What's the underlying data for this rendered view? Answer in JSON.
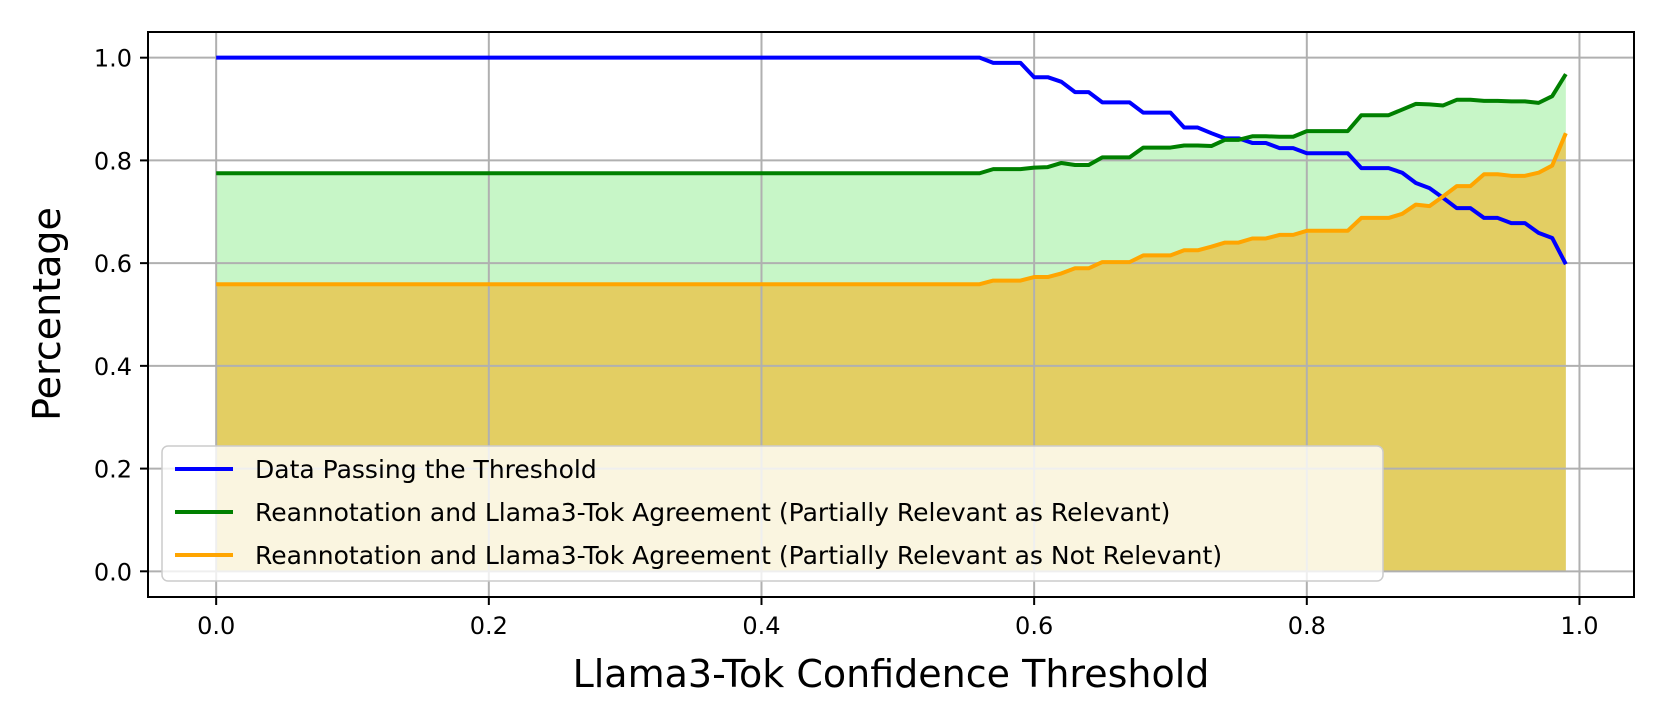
{
  "chart_data": {
    "type": "line",
    "title": "",
    "xlabel": "Llama3-Tok Confidence Threshold",
    "ylabel": "Percentage",
    "xlim": [
      -0.05,
      1.04
    ],
    "ylim": [
      -0.05,
      1.05
    ],
    "xticks": [
      0.0,
      0.2,
      0.4,
      0.6,
      0.8,
      1.0
    ],
    "xtick_labels": [
      "0.0",
      "0.2",
      "0.4",
      "0.6",
      "0.8",
      "1.0"
    ],
    "yticks": [
      0.0,
      0.2,
      0.4,
      0.6,
      0.8,
      1.0
    ],
    "ytick_labels": [
      "0.0",
      "0.2",
      "0.4",
      "0.6",
      "0.8",
      "1.0"
    ],
    "grid": true,
    "legend_position": "lower-left",
    "fill_under_lines": true,
    "series": [
      {
        "name": "Data Passing the Threshold",
        "color": "#0000ff",
        "fill_color": "",
        "points": [
          [
            0.0,
            1.0
          ],
          [
            0.56,
            1.0
          ],
          [
            0.57,
            0.99
          ],
          [
            0.59,
            0.99
          ],
          [
            0.6,
            0.962
          ],
          [
            0.61,
            0.962
          ],
          [
            0.62,
            0.953
          ],
          [
            0.63,
            0.933
          ],
          [
            0.64,
            0.933
          ],
          [
            0.65,
            0.913
          ],
          [
            0.67,
            0.913
          ],
          [
            0.68,
            0.893
          ],
          [
            0.7,
            0.893
          ],
          [
            0.71,
            0.864
          ],
          [
            0.72,
            0.864
          ],
          [
            0.73,
            0.853
          ],
          [
            0.74,
            0.843
          ],
          [
            0.75,
            0.843
          ],
          [
            0.76,
            0.834
          ],
          [
            0.77,
            0.834
          ],
          [
            0.78,
            0.824
          ],
          [
            0.79,
            0.824
          ],
          [
            0.8,
            0.814
          ],
          [
            0.83,
            0.814
          ],
          [
            0.84,
            0.785
          ],
          [
            0.86,
            0.785
          ],
          [
            0.87,
            0.776
          ],
          [
            0.88,
            0.756
          ],
          [
            0.89,
            0.746
          ],
          [
            0.9,
            0.727
          ],
          [
            0.91,
            0.707
          ],
          [
            0.92,
            0.707
          ],
          [
            0.93,
            0.688
          ],
          [
            0.94,
            0.688
          ],
          [
            0.95,
            0.678
          ],
          [
            0.96,
            0.678
          ],
          [
            0.97,
            0.659
          ],
          [
            0.98,
            0.649
          ],
          [
            0.99,
            0.598
          ]
        ]
      },
      {
        "name": "Reannotation and Llama3-Tok Agreement (Partially Relevant as Relevant)",
        "color": "#008000",
        "fill_color": "#90ee90",
        "points": [
          [
            0.0,
            0.775
          ],
          [
            0.56,
            0.775
          ],
          [
            0.57,
            0.783
          ],
          [
            0.59,
            0.783
          ],
          [
            0.6,
            0.786
          ],
          [
            0.61,
            0.787
          ],
          [
            0.62,
            0.795
          ],
          [
            0.63,
            0.791
          ],
          [
            0.64,
            0.791
          ],
          [
            0.65,
            0.806
          ],
          [
            0.67,
            0.806
          ],
          [
            0.68,
            0.825
          ],
          [
            0.7,
            0.825
          ],
          [
            0.71,
            0.829
          ],
          [
            0.72,
            0.829
          ],
          [
            0.73,
            0.828
          ],
          [
            0.74,
            0.84
          ],
          [
            0.75,
            0.84
          ],
          [
            0.76,
            0.847
          ],
          [
            0.77,
            0.847
          ],
          [
            0.78,
            0.846
          ],
          [
            0.79,
            0.846
          ],
          [
            0.8,
            0.857
          ],
          [
            0.83,
            0.857
          ],
          [
            0.84,
            0.888
          ],
          [
            0.86,
            0.888
          ],
          [
            0.87,
            0.899
          ],
          [
            0.88,
            0.91
          ],
          [
            0.89,
            0.909
          ],
          [
            0.9,
            0.907
          ],
          [
            0.91,
            0.918
          ],
          [
            0.92,
            0.918
          ],
          [
            0.93,
            0.916
          ],
          [
            0.94,
            0.916
          ],
          [
            0.95,
            0.915
          ],
          [
            0.96,
            0.915
          ],
          [
            0.97,
            0.912
          ],
          [
            0.98,
            0.925
          ],
          [
            0.99,
            0.968
          ]
        ]
      },
      {
        "name": "Reannotation and Llama3-Tok Agreement (Partially Relevant as Not Relevant)",
        "color": "#ffa500",
        "fill_color": "#ffa500",
        "points": [
          [
            0.0,
            0.559
          ],
          [
            0.56,
            0.559
          ],
          [
            0.57,
            0.566
          ],
          [
            0.59,
            0.566
          ],
          [
            0.6,
            0.573
          ],
          [
            0.61,
            0.573
          ],
          [
            0.62,
            0.58
          ],
          [
            0.63,
            0.59
          ],
          [
            0.64,
            0.59
          ],
          [
            0.65,
            0.602
          ],
          [
            0.67,
            0.602
          ],
          [
            0.68,
            0.615
          ],
          [
            0.7,
            0.615
          ],
          [
            0.71,
            0.625
          ],
          [
            0.72,
            0.625
          ],
          [
            0.73,
            0.632
          ],
          [
            0.74,
            0.64
          ],
          [
            0.75,
            0.64
          ],
          [
            0.76,
            0.648
          ],
          [
            0.77,
            0.648
          ],
          [
            0.78,
            0.655
          ],
          [
            0.79,
            0.655
          ],
          [
            0.8,
            0.663
          ],
          [
            0.83,
            0.663
          ],
          [
            0.84,
            0.688
          ],
          [
            0.86,
            0.688
          ],
          [
            0.87,
            0.696
          ],
          [
            0.88,
            0.714
          ],
          [
            0.89,
            0.711
          ],
          [
            0.9,
            0.73
          ],
          [
            0.91,
            0.75
          ],
          [
            0.92,
            0.75
          ],
          [
            0.93,
            0.773
          ],
          [
            0.94,
            0.773
          ],
          [
            0.95,
            0.77
          ],
          [
            0.96,
            0.77
          ],
          [
            0.97,
            0.776
          ],
          [
            0.98,
            0.79
          ],
          [
            0.99,
            0.853
          ]
        ]
      }
    ]
  }
}
